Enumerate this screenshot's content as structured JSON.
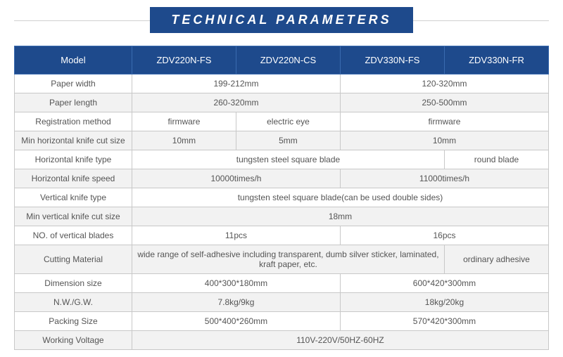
{
  "title": "TECHNICAL PARAMETERS",
  "columns": {
    "labelHeader": "Model",
    "models": [
      "ZDV220N-FS",
      "ZDV220N-CS",
      "ZDV330N-FS",
      "ZDV330N-FR"
    ]
  },
  "rows": [
    {
      "label": "Paper width",
      "cells": [
        {
          "text": "199-212mm",
          "span": 2
        },
        {
          "text": "120-320mm",
          "span": 2
        }
      ]
    },
    {
      "label": "Paper length",
      "cells": [
        {
          "text": "260-320mm",
          "span": 2
        },
        {
          "text": "250-500mm",
          "span": 2
        }
      ]
    },
    {
      "label": "Registration method",
      "cells": [
        {
          "text": "firmware",
          "span": 1
        },
        {
          "text": "electric eye",
          "span": 1
        },
        {
          "text": "firmware",
          "span": 2
        }
      ]
    },
    {
      "label": "Min horizontal knife cut size",
      "cells": [
        {
          "text": "10mm",
          "span": 1
        },
        {
          "text": "5mm",
          "span": 1
        },
        {
          "text": "10mm",
          "span": 2
        }
      ]
    },
    {
      "label": "Horizontal knife type",
      "cells": [
        {
          "text": "tungsten steel square blade",
          "span": 3
        },
        {
          "text": "round blade",
          "span": 1
        }
      ]
    },
    {
      "label": "Horizontal knife speed",
      "cells": [
        {
          "text": "10000times/h",
          "span": 2
        },
        {
          "text": "11000times/h",
          "span": 2
        }
      ]
    },
    {
      "label": "Vertical knife type",
      "cells": [
        {
          "text": "tungsten steel square blade(can be used double sides)",
          "span": 4
        }
      ]
    },
    {
      "label": "Min vertical knife cut size",
      "cells": [
        {
          "text": "18mm",
          "span": 4
        }
      ]
    },
    {
      "label": "NO. of vertical blades",
      "cells": [
        {
          "text": "11pcs",
          "span": 2
        },
        {
          "text": "16pcs",
          "span": 2
        }
      ]
    },
    {
      "label": "Cutting Material",
      "cells": [
        {
          "text": "wide range of self-adhesive including transparent, dumb silver sticker, laminated, kraft paper, etc.",
          "span": 3
        },
        {
          "text": "ordinary adhesive",
          "span": 1
        }
      ]
    },
    {
      "label": "Dimension size",
      "cells": [
        {
          "text": "400*300*180mm",
          "span": 2
        },
        {
          "text": "600*420*300mm",
          "span": 2
        }
      ]
    },
    {
      "label": "N.W./G.W.",
      "cells": [
        {
          "text": "7.8kg/9kg",
          "span": 2
        },
        {
          "text": "18kg/20kg",
          "span": 2
        }
      ]
    },
    {
      "label": "Packing Size",
      "cells": [
        {
          "text": "500*400*260mm",
          "span": 2
        },
        {
          "text": "570*420*300mm",
          "span": 2
        }
      ]
    },
    {
      "label": "Working Voltage",
      "cells": [
        {
          "text": "110V-220V/50HZ-60HZ",
          "span": 4
        }
      ]
    }
  ],
  "colors": {
    "headerBg": "#1e4a8c",
    "headerText": "#ffffff",
    "border": "#c8c8c8",
    "altRow": "#f2f2f2",
    "text": "#555555"
  }
}
